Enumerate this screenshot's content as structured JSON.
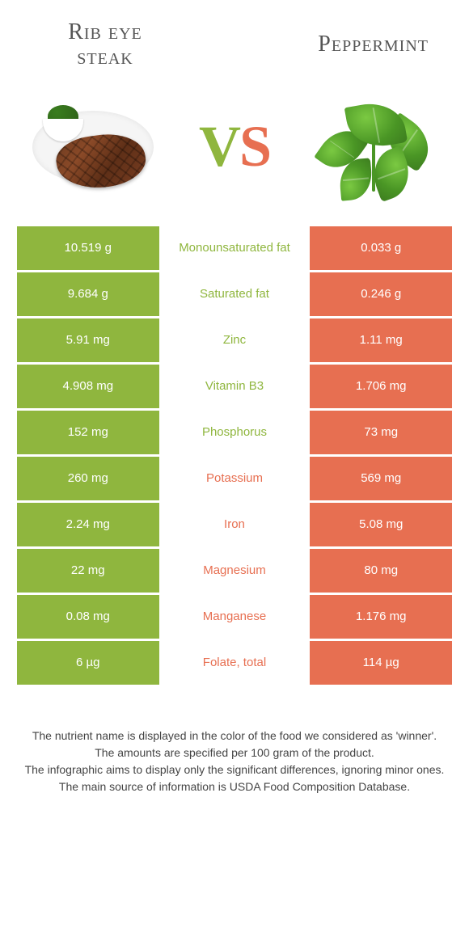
{
  "colors": {
    "green": "#8fb63e",
    "orange": "#e76f51",
    "title_gray": "#555555"
  },
  "left_food": {
    "title_line1": "Rib eye",
    "title_line2": "steak"
  },
  "right_food": {
    "title": "Peppermint"
  },
  "vs": {
    "v": "V",
    "s": "S"
  },
  "rows": [
    {
      "left": "10.519 g",
      "label": "Monounsaturated fat",
      "right": "0.033 g",
      "winner": "left"
    },
    {
      "left": "9.684 g",
      "label": "Saturated fat",
      "right": "0.246 g",
      "winner": "left"
    },
    {
      "left": "5.91 mg",
      "label": "Zinc",
      "right": "1.11 mg",
      "winner": "left"
    },
    {
      "left": "4.908 mg",
      "label": "Vitamin B3",
      "right": "1.706 mg",
      "winner": "left"
    },
    {
      "left": "152 mg",
      "label": "Phosphorus",
      "right": "73 mg",
      "winner": "left"
    },
    {
      "left": "260 mg",
      "label": "Potassium",
      "right": "569 mg",
      "winner": "right"
    },
    {
      "left": "2.24 mg",
      "label": "Iron",
      "right": "5.08 mg",
      "winner": "right"
    },
    {
      "left": "22 mg",
      "label": "Magnesium",
      "right": "80 mg",
      "winner": "right"
    },
    {
      "left": "0.08 mg",
      "label": "Manganese",
      "right": "1.176 mg",
      "winner": "right"
    },
    {
      "left": "6 µg",
      "label": "Folate, total",
      "right": "114 µg",
      "winner": "right"
    }
  ],
  "footer": {
    "line1": "The nutrient name is displayed in the color of the food we considered as 'winner'.",
    "line2": "The amounts are specified per 100 gram of the product.",
    "line3": "The infographic aims to display only the significant differences, ignoring minor ones.",
    "line4": "The main source of information is USDA Food Composition Database."
  }
}
